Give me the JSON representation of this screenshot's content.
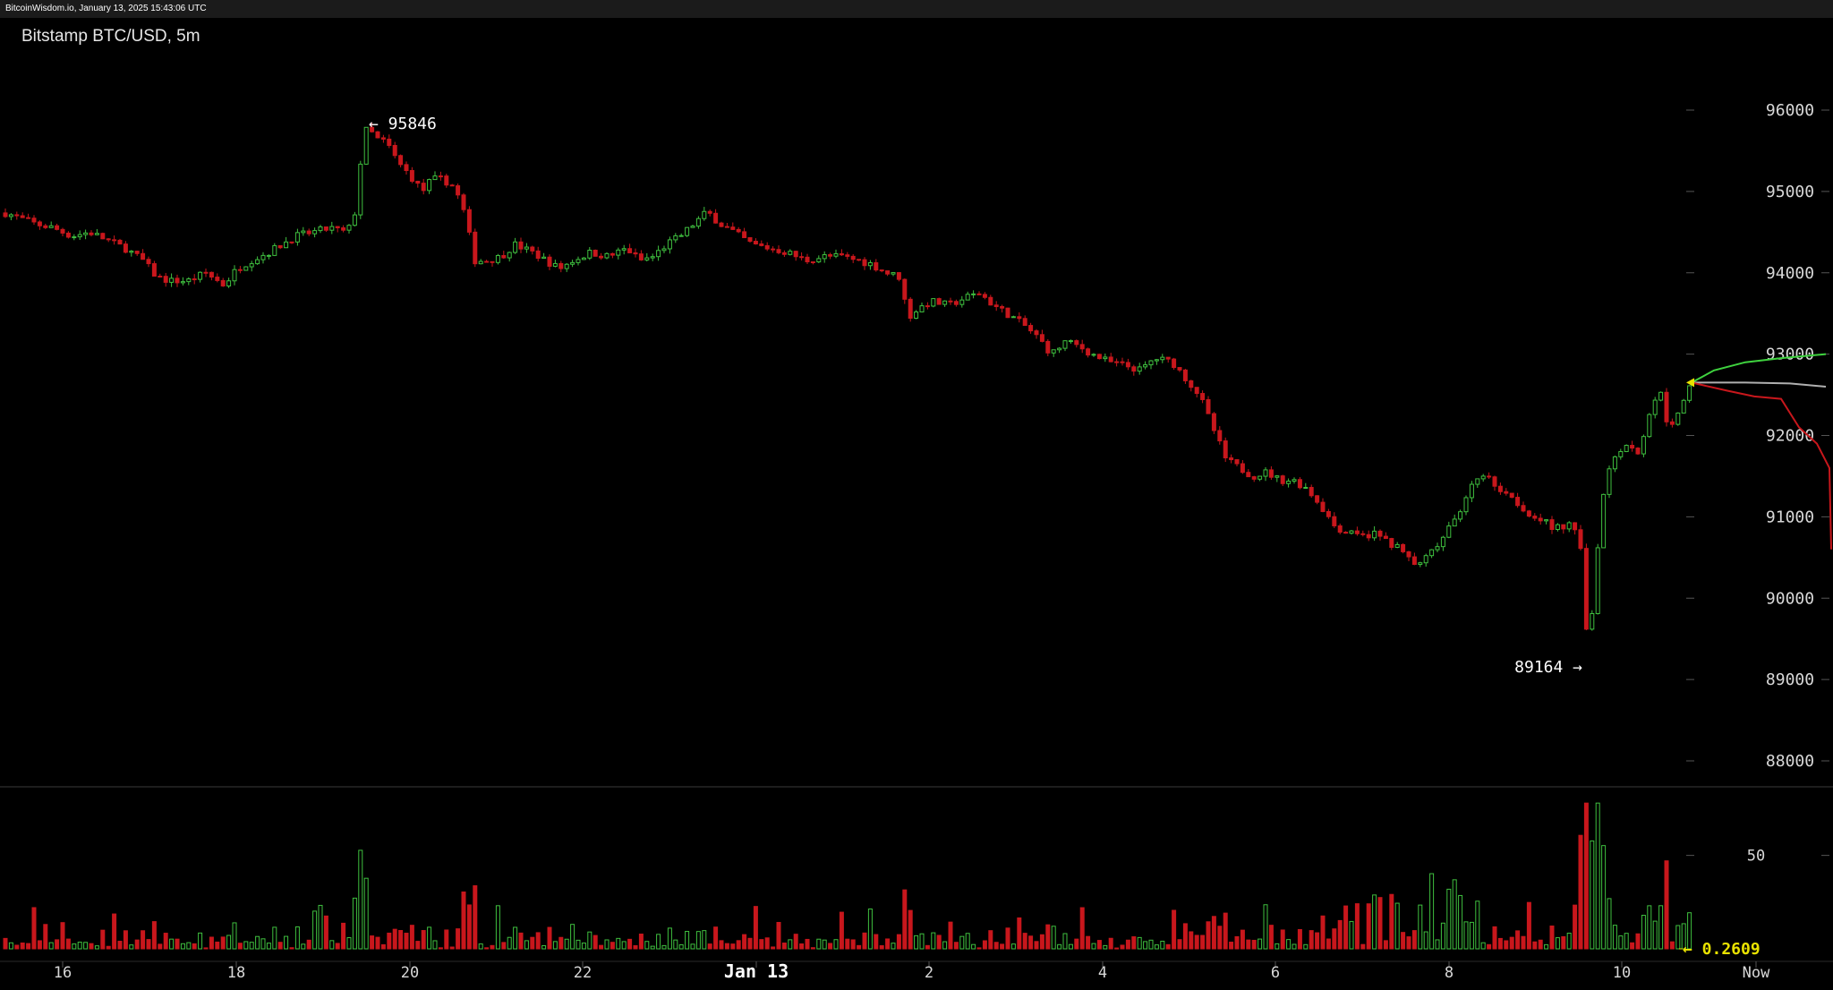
{
  "header": {
    "source": "BitcoinWisdom.io, January 13, 2025 15:43:06 UTC"
  },
  "chart_title": "Bitstamp BTC/USD, 5m",
  "colors": {
    "up": "#3fbf3f",
    "down": "#c8171c",
    "background": "#000000",
    "axis_text": "#d8d8d8",
    "highlight": "#e9e200"
  },
  "chart_data": {
    "type": "candlestick",
    "title": "Bitstamp BTC/USD, 5m",
    "ylim": [
      87500,
      97000
    ],
    "y_ticks": [
      88000,
      89000,
      90000,
      91000,
      92000,
      93000,
      94000,
      95000,
      96000
    ],
    "x_ticks": [
      "16",
      "18",
      "20",
      "22",
      "Jan 13",
      "2",
      "4",
      "6",
      "8",
      "10",
      "Now"
    ],
    "high_annotation": {
      "value": "95846",
      "label": "← 95846"
    },
    "low_annotation": {
      "value": "89164",
      "label": "89164 →"
    },
    "price_path": [
      [
        0,
        94760
      ],
      [
        20,
        94680
      ],
      [
        40,
        94600
      ],
      [
        60,
        94550
      ],
      [
        80,
        94450
      ],
      [
        100,
        94500
      ],
      [
        120,
        94400
      ],
      [
        140,
        94300
      ],
      [
        160,
        94150
      ],
      [
        175,
        93950
      ],
      [
        190,
        93900
      ],
      [
        210,
        93900
      ],
      [
        230,
        94000
      ],
      [
        250,
        93850
      ],
      [
        265,
        94050
      ],
      [
        280,
        94150
      ],
      [
        300,
        94250
      ],
      [
        315,
        94350
      ],
      [
        330,
        94450
      ],
      [
        350,
        94500
      ],
      [
        370,
        94550
      ],
      [
        385,
        94500
      ],
      [
        395,
        94600
      ],
      [
        402,
        95300
      ],
      [
        410,
        95800
      ],
      [
        420,
        95650
      ],
      [
        432,
        95600
      ],
      [
        445,
        95350
      ],
      [
        458,
        95200
      ],
      [
        472,
        95000
      ],
      [
        482,
        95150
      ],
      [
        495,
        95150
      ],
      [
        508,
        95050
      ],
      [
        520,
        94700
      ],
      [
        530,
        94150
      ],
      [
        545,
        94150
      ],
      [
        560,
        94200
      ],
      [
        575,
        94350
      ],
      [
        595,
        94250
      ],
      [
        610,
        94150
      ],
      [
        625,
        94050
      ],
      [
        640,
        94150
      ],
      [
        660,
        94250
      ],
      [
        680,
        94200
      ],
      [
        700,
        94300
      ],
      [
        715,
        94150
      ],
      [
        730,
        94200
      ],
      [
        745,
        94350
      ],
      [
        760,
        94450
      ],
      [
        775,
        94600
      ],
      [
        790,
        94750
      ],
      [
        805,
        94600
      ],
      [
        820,
        94500
      ],
      [
        840,
        94350
      ],
      [
        860,
        94300
      ],
      [
        880,
        94250
      ],
      [
        900,
        94150
      ],
      [
        920,
        94200
      ],
      [
        940,
        94200
      ],
      [
        960,
        94150
      ],
      [
        975,
        94100
      ],
      [
        990,
        94000
      ],
      [
        1005,
        93950
      ],
      [
        1015,
        93450
      ],
      [
        1025,
        93550
      ],
      [
        1040,
        93650
      ],
      [
        1060,
        93600
      ],
      [
        1080,
        93700
      ],
      [
        1095,
        93750
      ],
      [
        1110,
        93600
      ],
      [
        1125,
        93500
      ],
      [
        1145,
        93350
      ],
      [
        1160,
        93200
      ],
      [
        1175,
        93000
      ],
      [
        1190,
        93150
      ],
      [
        1205,
        93100
      ],
      [
        1220,
        93000
      ],
      [
        1240,
        92900
      ],
      [
        1260,
        92850
      ],
      [
        1275,
        92800
      ],
      [
        1290,
        92950
      ],
      [
        1310,
        92900
      ],
      [
        1325,
        92700
      ],
      [
        1340,
        92500
      ],
      [
        1355,
        92100
      ],
      [
        1370,
        91700
      ],
      [
        1385,
        91600
      ],
      [
        1400,
        91500
      ],
      [
        1415,
        91550
      ],
      [
        1430,
        91450
      ],
      [
        1445,
        91450
      ],
      [
        1460,
        91350
      ],
      [
        1475,
        91150
      ],
      [
        1490,
        90900
      ],
      [
        1505,
        90800
      ],
      [
        1520,
        90750
      ],
      [
        1535,
        90800
      ],
      [
        1550,
        90700
      ],
      [
        1565,
        90600
      ],
      [
        1580,
        90400
      ],
      [
        1595,
        90500
      ],
      [
        1610,
        90700
      ],
      [
        1625,
        90950
      ],
      [
        1640,
        91300
      ],
      [
        1655,
        91550
      ],
      [
        1670,
        91400
      ],
      [
        1690,
        91250
      ],
      [
        1705,
        91050
      ],
      [
        1720,
        91000
      ],
      [
        1735,
        90850
      ],
      [
        1750,
        90900
      ],
      [
        1765,
        90850
      ],
      [
        1770,
        89800
      ],
      [
        1776,
        89400
      ],
      [
        1782,
        90300
      ],
      [
        1790,
        91200
      ],
      [
        1800,
        91700
      ],
      [
        1815,
        91900
      ],
      [
        1830,
        91800
      ],
      [
        1845,
        92300
      ],
      [
        1855,
        92600
      ],
      [
        1862,
        92200
      ],
      [
        1870,
        92100
      ],
      [
        1880,
        92400
      ],
      [
        1890,
        92650
      ]
    ],
    "bid_line_green": [
      [
        1890,
        92650
      ],
      [
        1915,
        92800
      ],
      [
        1950,
        92900
      ],
      [
        1990,
        92950
      ],
      [
        2040,
        93000
      ]
    ],
    "mid_line_gray": [
      [
        1890,
        92650
      ],
      [
        1950,
        92650
      ],
      [
        2000,
        92640
      ],
      [
        2040,
        92600
      ]
    ],
    "ask_line_red": [
      [
        1890,
        92650
      ],
      [
        1930,
        92550
      ],
      [
        1960,
        92480
      ],
      [
        1990,
        92450
      ],
      [
        2010,
        92100
      ],
      [
        2030,
        91900
      ],
      [
        2044,
        91600
      ],
      [
        2046,
        90600
      ]
    ],
    "volume": {
      "label": "0.2609",
      "ylim": [
        0,
        80
      ],
      "y_ticks": [
        50
      ]
    }
  }
}
